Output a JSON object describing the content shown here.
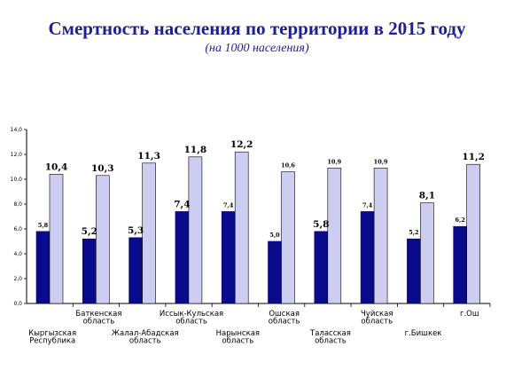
{
  "chart_data": {
    "type": "bar",
    "title": "Смертность населения по территории в 2015 году",
    "subtitle": "(на 1000 населения)",
    "xlabel": "",
    "ylabel": "",
    "ylim": [
      0,
      14
    ],
    "y_ticks": [
      "0,0",
      "2,0",
      "4,0",
      "6,0",
      "8,0",
      "10,0",
      "12,0",
      "14,0"
    ],
    "grid": false,
    "legend": "none",
    "categories": [
      [
        "Кыргызская",
        "Республика"
      ],
      [
        "Баткенская",
        "область"
      ],
      [
        "Жалал-Абадская",
        "область"
      ],
      [
        "Иссык-Кульская",
        "область"
      ],
      [
        "Нарынская",
        "область"
      ],
      [
        "Ошская",
        "область"
      ],
      [
        "Таласская",
        "область"
      ],
      [
        "Чуйская",
        "область"
      ],
      [
        "г.Бишкек"
      ],
      [
        "г.Ош"
      ]
    ],
    "series": [
      {
        "color": "#0a0a8c",
        "values": [
          5.8,
          5.2,
          5.3,
          7.4,
          7.4,
          5.0,
          5.8,
          7.4,
          5.2,
          6.2
        ],
        "labels": [
          "5,8",
          "5,2",
          "5,3",
          "7,4",
          "7,4",
          "5,0",
          "5,8",
          "7,4",
          "5,2",
          "6,2"
        ]
      },
      {
        "color": "#cccdf0",
        "values": [
          10.4,
          10.3,
          11.3,
          11.8,
          12.2,
          10.6,
          10.9,
          10.9,
          8.1,
          11.2
        ],
        "labels": [
          "10,4",
          "10,3",
          "11,3",
          "11,8",
          "12,2",
          "10,6",
          "10,9",
          "10,9",
          "8,1",
          "11,2"
        ]
      }
    ]
  }
}
